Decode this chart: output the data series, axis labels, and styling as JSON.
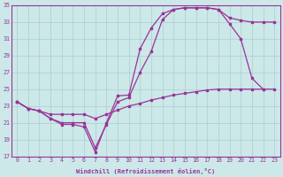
{
  "xlabel": "Windchill (Refroidissement éolien,°C)",
  "bg_color": "#cce8e8",
  "grid_color": "#aacfcf",
  "line_color": "#993399",
  "xlim": [
    -0.5,
    23.5
  ],
  "ylim": [
    17,
    35
  ],
  "yticks": [
    17,
    19,
    21,
    23,
    25,
    27,
    29,
    31,
    33,
    35
  ],
  "xticks": [
    0,
    1,
    2,
    3,
    4,
    5,
    6,
    7,
    8,
    9,
    10,
    11,
    12,
    13,
    14,
    15,
    16,
    17,
    18,
    19,
    20,
    21,
    22,
    23
  ],
  "s1_x": [
    0,
    1,
    2,
    3,
    4,
    5,
    6,
    7,
    8,
    9,
    10,
    11,
    12,
    13,
    14,
    15,
    16,
    17,
    18,
    19,
    20,
    21,
    22
  ],
  "s1_y": [
    23.5,
    22.7,
    22.4,
    21.5,
    20.8,
    20.8,
    20.5,
    17.5,
    21.0,
    24.2,
    24.3,
    29.8,
    32.3,
    34.0,
    34.5,
    34.7,
    34.7,
    34.7,
    34.5,
    32.8,
    31.0,
    26.3,
    25.0
  ],
  "s2_x": [
    0,
    1,
    2,
    3,
    4,
    5,
    6,
    7,
    8,
    9,
    10,
    11,
    12,
    13,
    14,
    15,
    16,
    17,
    18,
    19,
    20,
    21,
    22,
    23
  ],
  "s2_y": [
    23.5,
    22.7,
    22.4,
    21.5,
    21.0,
    21.0,
    21.0,
    18.0,
    20.8,
    23.5,
    24.0,
    27.0,
    29.5,
    33.3,
    34.5,
    34.7,
    34.7,
    34.7,
    34.5,
    33.5,
    33.2,
    33.0,
    33.0,
    33.0
  ],
  "s3_x": [
    0,
    1,
    2,
    3,
    4,
    5,
    6,
    7,
    8,
    9,
    10,
    11,
    12,
    13,
    14,
    15,
    16,
    17,
    18,
    19,
    20,
    21,
    22,
    23
  ],
  "s3_y": [
    23.5,
    22.7,
    22.4,
    22.0,
    22.0,
    22.0,
    22.0,
    21.5,
    22.0,
    22.5,
    23.0,
    23.3,
    23.7,
    24.0,
    24.3,
    24.5,
    24.7,
    24.9,
    25.0,
    25.0,
    25.0,
    25.0,
    25.0,
    25.0
  ]
}
